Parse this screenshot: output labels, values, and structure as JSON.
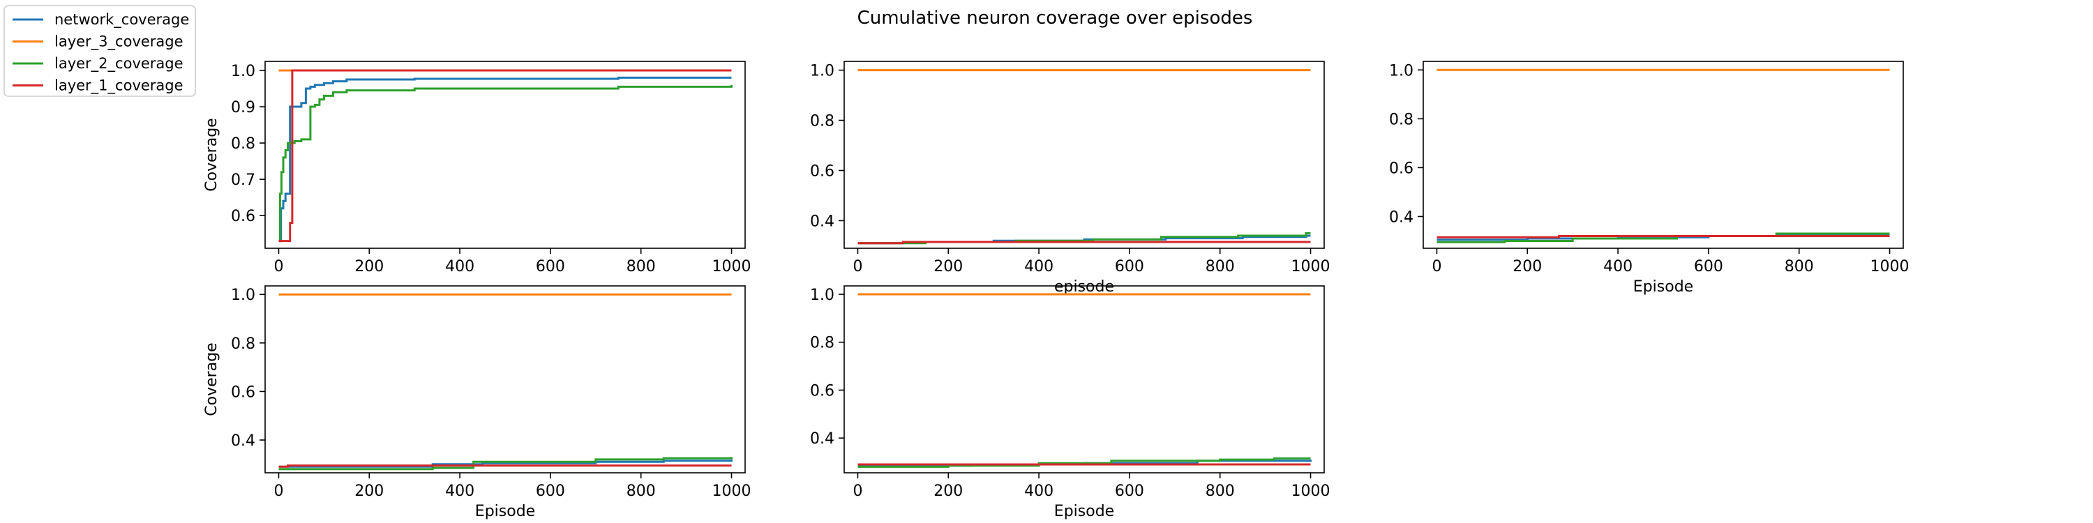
{
  "figure": {
    "title": "Cumulative neuron coverage over episodes"
  },
  "legend": {
    "placement": "top-left",
    "entries": [
      {
        "label": "network_coverage",
        "color": "#1f77b4"
      },
      {
        "label": "layer_3_coverage",
        "color": "#ff7f0e"
      },
      {
        "label": "layer_2_coverage",
        "color": "#2ca02c"
      },
      {
        "label": "layer_1_coverage",
        "color": "#d62728"
      }
    ]
  },
  "chart_data": [
    {
      "type": "line",
      "xlabel": "",
      "ylabel": "Coverage",
      "xlim": [
        -30,
        1030
      ],
      "ylim": [
        0.51,
        1.025
      ],
      "xticks": [
        0,
        200,
        400,
        600,
        800,
        1000
      ],
      "yticks": [
        0.6,
        0.7,
        0.8,
        0.9,
        1.0
      ],
      "ytick_labels": [
        "0.6",
        "0.7",
        "0.8",
        "0.9",
        "1.0"
      ],
      "grid": false,
      "series": [
        {
          "name": "network_coverage",
          "color": "#1f77b4",
          "x": [
            0,
            5,
            10,
            15,
            25,
            30,
            50,
            60,
            70,
            80,
            100,
            120,
            150,
            300,
            750,
            1000
          ],
          "y": [
            0.53,
            0.62,
            0.64,
            0.66,
            0.9,
            0.9,
            0.91,
            0.95,
            0.955,
            0.96,
            0.965,
            0.97,
            0.975,
            0.977,
            0.98,
            0.98
          ]
        },
        {
          "name": "layer_3_coverage",
          "color": "#ff7f0e",
          "x": [
            0,
            1000
          ],
          "y": [
            1.0,
            1.0
          ]
        },
        {
          "name": "layer_2_coverage",
          "color": "#2ca02c",
          "x": [
            0,
            3,
            6,
            10,
            15,
            20,
            25,
            35,
            50,
            65,
            70,
            80,
            90,
            100,
            120,
            150,
            300,
            750,
            1000
          ],
          "y": [
            0.53,
            0.66,
            0.72,
            0.76,
            0.78,
            0.8,
            0.8,
            0.805,
            0.81,
            0.81,
            0.9,
            0.905,
            0.92,
            0.93,
            0.94,
            0.945,
            0.95,
            0.955,
            0.96
          ]
        },
        {
          "name": "layer_1_coverage",
          "color": "#d62728",
          "x": [
            0,
            20,
            25,
            30,
            1000
          ],
          "y": [
            0.53,
            0.53,
            0.58,
            1.0,
            1.0
          ]
        }
      ]
    },
    {
      "type": "line",
      "xlabel": "episode",
      "ylabel": "",
      "xlim": [
        -30,
        1030
      ],
      "ylim": [
        0.29,
        1.035
      ],
      "xticks": [
        0,
        200,
        400,
        600,
        800,
        1000
      ],
      "yticks": [
        0.4,
        0.6,
        0.8,
        1.0
      ],
      "ytick_labels": [
        "0.4",
        "0.6",
        "0.8",
        "1.0"
      ],
      "grid": false,
      "series": [
        {
          "name": "network_coverage",
          "color": "#1f77b4",
          "x": [
            0,
            100,
            300,
            500,
            680,
            850,
            990,
            1000
          ],
          "y": [
            0.31,
            0.315,
            0.32,
            0.325,
            0.33,
            0.335,
            0.34,
            0.34
          ]
        },
        {
          "name": "layer_3_coverage",
          "color": "#ff7f0e",
          "x": [
            0,
            1000
          ],
          "y": [
            1.0,
            1.0
          ]
        },
        {
          "name": "layer_2_coverage",
          "color": "#2ca02c",
          "x": [
            0,
            150,
            350,
            520,
            670,
            840,
            990,
            1000
          ],
          "y": [
            0.31,
            0.315,
            0.32,
            0.325,
            0.335,
            0.34,
            0.35,
            0.35
          ]
        },
        {
          "name": "layer_1_coverage",
          "color": "#d62728",
          "x": [
            0,
            100,
            1000
          ],
          "y": [
            0.31,
            0.315,
            0.315
          ]
        }
      ]
    },
    {
      "type": "line",
      "xlabel": "Episode",
      "ylabel": "",
      "xlim": [
        -30,
        1030
      ],
      "ylim": [
        0.27,
        1.035
      ],
      "xticks": [
        0,
        200,
        400,
        600,
        800,
        1000
      ],
      "yticks": [
        0.4,
        0.6,
        0.8,
        1.0
      ],
      "ytick_labels": [
        "0.4",
        "0.6",
        "0.8",
        "1.0"
      ],
      "grid": false,
      "series": [
        {
          "name": "network_coverage",
          "color": "#1f77b4",
          "x": [
            0,
            200,
            400,
            600,
            750,
            1000
          ],
          "y": [
            0.305,
            0.31,
            0.315,
            0.32,
            0.325,
            0.325
          ]
        },
        {
          "name": "layer_3_coverage",
          "color": "#ff7f0e",
          "x": [
            0,
            1000
          ],
          "y": [
            1.0,
            1.0
          ]
        },
        {
          "name": "layer_2_coverage",
          "color": "#2ca02c",
          "x": [
            0,
            150,
            300,
            530,
            750,
            1000
          ],
          "y": [
            0.295,
            0.3,
            0.31,
            0.32,
            0.33,
            0.33
          ]
        },
        {
          "name": "layer_1_coverage",
          "color": "#d62728",
          "x": [
            0,
            270,
            620,
            1000
          ],
          "y": [
            0.315,
            0.32,
            0.32,
            0.32
          ]
        }
      ]
    },
    {
      "type": "line",
      "xlabel": "Episode",
      "ylabel": "Coverage",
      "xlim": [
        -30,
        1030
      ],
      "ylim": [
        0.265,
        1.035
      ],
      "xticks": [
        0,
        200,
        400,
        600,
        800,
        1000
      ],
      "yticks": [
        0.4,
        0.6,
        0.8,
        1.0
      ],
      "ytick_labels": [
        "0.4",
        "0.6",
        "0.8",
        "1.0"
      ],
      "grid": false,
      "series": [
        {
          "name": "network_coverage",
          "color": "#1f77b4",
          "x": [
            0,
            100,
            340,
            450,
            700,
            850,
            1000
          ],
          "y": [
            0.29,
            0.29,
            0.3,
            0.305,
            0.31,
            0.315,
            0.32
          ]
        },
        {
          "name": "layer_3_coverage",
          "color": "#ff7f0e",
          "x": [
            0,
            1000
          ],
          "y": [
            1.0,
            1.0
          ]
        },
        {
          "name": "layer_2_coverage",
          "color": "#2ca02c",
          "x": [
            0,
            340,
            430,
            700,
            850,
            1000
          ],
          "y": [
            0.28,
            0.285,
            0.31,
            0.32,
            0.325,
            0.33
          ]
        },
        {
          "name": "layer_1_coverage",
          "color": "#d62728",
          "x": [
            0,
            20,
            1000
          ],
          "y": [
            0.29,
            0.295,
            0.295
          ]
        }
      ]
    },
    {
      "type": "line",
      "xlabel": "Episode",
      "ylabel": "",
      "xlim": [
        -30,
        1030
      ],
      "ylim": [
        0.255,
        1.035
      ],
      "xticks": [
        0,
        200,
        400,
        600,
        800,
        1000
      ],
      "yticks": [
        0.4,
        0.6,
        0.8,
        1.0
      ],
      "ytick_labels": [
        "0.4",
        "0.6",
        "0.8",
        "1.0"
      ],
      "grid": false,
      "series": [
        {
          "name": "network_coverage",
          "color": "#1f77b4",
          "x": [
            0,
            250,
            500,
            750,
            1000
          ],
          "y": [
            0.285,
            0.29,
            0.295,
            0.305,
            0.31
          ]
        },
        {
          "name": "layer_3_coverage",
          "color": "#ff7f0e",
          "x": [
            0,
            1000
          ],
          "y": [
            1.0,
            1.0
          ]
        },
        {
          "name": "layer_2_coverage",
          "color": "#2ca02c",
          "x": [
            0,
            200,
            400,
            560,
            800,
            920,
            1000
          ],
          "y": [
            0.28,
            0.285,
            0.295,
            0.305,
            0.31,
            0.315,
            0.315
          ]
        },
        {
          "name": "layer_1_coverage",
          "color": "#d62728",
          "x": [
            0,
            1000
          ],
          "y": [
            0.29,
            0.29
          ]
        }
      ]
    }
  ]
}
